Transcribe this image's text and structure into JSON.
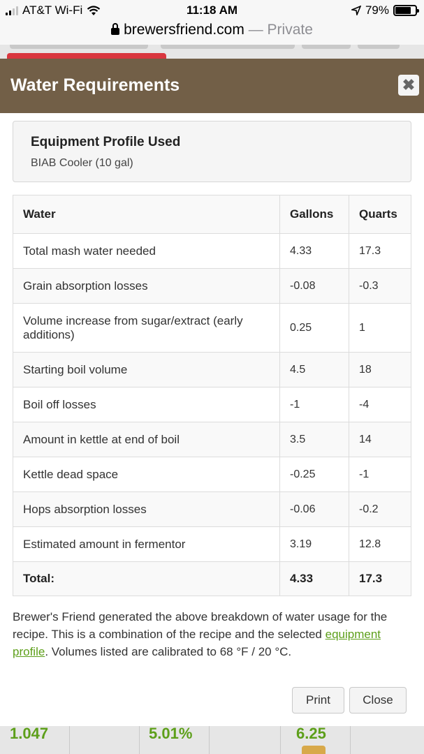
{
  "status_bar": {
    "carrier": "AT&T Wi-Fi",
    "time": "11:18 AM",
    "battery": "79%",
    "battery_level": 0.79
  },
  "browser": {
    "domain": "brewersfriend.com",
    "mode": "— Private"
  },
  "modal": {
    "title": "Water Requirements",
    "close_icon": "close-icon",
    "equipment": {
      "label": "Equipment Profile Used",
      "value": "BIAB Cooler (10 gal)"
    },
    "table": {
      "headers": [
        "Water",
        "Gallons",
        "Quarts"
      ],
      "rows": [
        {
          "label": "Total mash water needed",
          "gallons": "4.33",
          "quarts": "17.3"
        },
        {
          "label": "Grain absorption losses",
          "gallons": "-0.08",
          "quarts": "-0.3"
        },
        {
          "label": "Volume increase from sugar/extract (early additions)",
          "gallons": "0.25",
          "quarts": "1"
        },
        {
          "label": "Starting boil volume",
          "gallons": "4.5",
          "quarts": "18"
        },
        {
          "label": "Boil off losses",
          "gallons": "-1",
          "quarts": "-4"
        },
        {
          "label": "Amount in kettle at end of boil",
          "gallons": "3.5",
          "quarts": "14"
        },
        {
          "label": "Kettle dead space",
          "gallons": "-0.25",
          "quarts": "-1"
        },
        {
          "label": "Hops absorption losses",
          "gallons": "-0.06",
          "quarts": "-0.2"
        },
        {
          "label": "Estimated amount in fermentor",
          "gallons": "3.19",
          "quarts": "12.8"
        }
      ],
      "total": {
        "label": "Total:",
        "gallons": "4.33",
        "quarts": "17.3"
      }
    },
    "note": {
      "before_link": "Brewer's Friend generated the above breakdown of water usage for the recipe. This is a combination of the recipe and the selected ",
      "link": "equipment profile",
      "after_link": ". Volumes listed are calibrated to 68 °F / 20 °C."
    },
    "buttons": {
      "print": "Print",
      "close": "Close"
    }
  },
  "background_stats": [
    "1.047",
    "5.01%",
    "6.25"
  ],
  "colors": {
    "header": "#725f47",
    "link": "#5d9f1a",
    "accent_red": "#d9363e"
  }
}
